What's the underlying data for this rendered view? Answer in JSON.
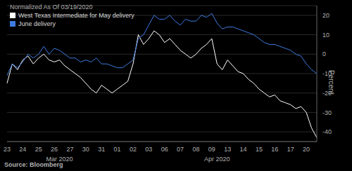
{
  "chart_data": {
    "type": "line",
    "subtitle": "Normalized As Of 03/19/2020",
    "ylabel": "Percent",
    "source": "Source: Bloomberg",
    "categories": [
      "23",
      null,
      null,
      "24",
      null,
      null,
      "25",
      null,
      null,
      "26",
      null,
      null,
      "27",
      null,
      null,
      "30",
      null,
      null,
      "31",
      null,
      null,
      "01",
      null,
      null,
      "02",
      null,
      null,
      "03",
      null,
      null,
      "06",
      null,
      null,
      "07",
      null,
      null,
      "08",
      null,
      null,
      "09",
      null,
      null,
      "13",
      null,
      null,
      "14",
      null,
      null,
      "15",
      null,
      null,
      "16",
      null,
      null,
      "17",
      null,
      null,
      "20",
      null,
      null
    ],
    "x_groups": [
      {
        "label": "Mar 2020",
        "start": 0,
        "end": 20
      },
      {
        "label": "Apr 2020",
        "start": 21,
        "end": 59
      }
    ],
    "series": [
      {
        "name": "West Texas Intermediate for May delivery",
        "color": "#ffffff",
        "values": [
          -15,
          -5,
          -8,
          -3,
          -1,
          -5,
          -2,
          0,
          -3,
          -4,
          -3,
          -6,
          -8,
          -10,
          -12,
          -15,
          -18,
          -20,
          -16,
          -18,
          -20,
          -18,
          -16,
          -14,
          -5,
          10,
          5,
          8,
          12,
          10,
          6,
          8,
          5,
          2,
          0,
          -2,
          0,
          3,
          5,
          8,
          -5,
          -8,
          -3,
          -6,
          -9,
          -10,
          -13,
          -15,
          -18,
          -20,
          -22,
          -21,
          -24,
          -25,
          -26,
          -28,
          -27,
          -30,
          -38,
          -43
        ]
      },
      {
        "name": "June delivery",
        "color": "#3d7be0",
        "values": [
          -11,
          -5,
          -7,
          -4,
          0,
          -2,
          0,
          4,
          0,
          3,
          2,
          0,
          -2,
          -2,
          -4,
          -3,
          -4,
          -2,
          -5,
          -5,
          -6,
          -7,
          -7,
          -5,
          -3,
          8,
          10,
          15,
          20,
          18,
          18,
          20,
          17,
          15,
          18,
          17,
          17,
          20,
          19,
          21,
          16,
          13,
          14,
          14,
          13,
          12,
          11,
          10,
          8,
          6,
          5,
          5,
          4,
          3,
          2,
          0,
          -1,
          -5,
          -8,
          -10
        ]
      }
    ],
    "ylim": [
      -45,
      25
    ],
    "yticks": [
      -40,
      -30,
      -20,
      -10,
      0,
      10,
      20
    ],
    "grid": true,
    "legend": "top-left"
  }
}
